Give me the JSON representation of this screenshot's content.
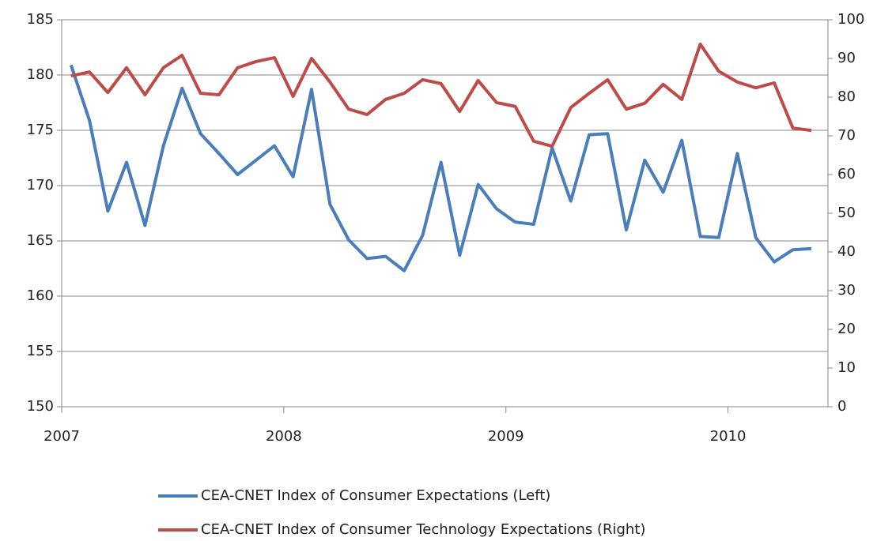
{
  "chart_data": {
    "type": "line",
    "x": [
      2007.042,
      2007.125,
      2007.208,
      2007.292,
      2007.375,
      2007.458,
      2007.542,
      2007.625,
      2007.708,
      2007.792,
      2007.875,
      2007.958,
      2008.042,
      2008.125,
      2008.208,
      2008.292,
      2008.375,
      2008.458,
      2008.542,
      2008.625,
      2008.708,
      2008.792,
      2008.875,
      2008.958,
      2009.042,
      2009.125,
      2009.208,
      2009.292,
      2009.375,
      2009.458,
      2009.542,
      2009.625,
      2009.708,
      2009.792,
      2009.875,
      2009.958,
      2010.042,
      2010.125,
      2010.208,
      2010.292,
      2010.375
    ],
    "xlim": [
      2007,
      2010.45
    ],
    "xticks": [
      2007,
      2008,
      2009,
      2010
    ],
    "ylim": [
      150,
      185
    ],
    "yticks": [
      150,
      155,
      160,
      165,
      170,
      175,
      180,
      185
    ],
    "y2lim": [
      0,
      100
    ],
    "y2ticks": [
      0,
      10,
      20,
      30,
      40,
      50,
      60,
      70,
      80,
      90,
      100
    ],
    "grid": true,
    "legend": "bottom",
    "series": [
      {
        "name": "CEA-CNET Index of Consumer Expectations (Left)",
        "color": "#4a7ebb",
        "values": [
          180.9,
          175.9,
          167.7,
          172.1,
          166.4,
          173.6,
          178.8,
          174.7,
          172.9,
          171.0,
          172.3,
          173.6,
          170.8,
          178.7,
          168.3,
          165.1,
          163.4,
          163.6,
          162.3,
          165.5,
          172.1,
          163.7,
          170.1,
          167.9,
          166.7,
          166.5,
          173.4,
          168.6,
          174.6,
          174.7,
          166.0,
          172.3,
          169.4,
          174.1,
          165.4,
          165.3,
          172.9,
          165.3,
          163.1,
          164.2,
          164.3
        ]
      },
      {
        "name": "CEA-CNET Index of Consumer Technology Expectations (Right)",
        "color": "#be4b48",
        "axis": "y2",
        "values": [
          85.5,
          86.5,
          81.2,
          87.6,
          80.6,
          87.6,
          90.8,
          81.0,
          80.6,
          87.6,
          89.2,
          90.2,
          80.2,
          90.0,
          83.9,
          76.9,
          75.5,
          79.4,
          81.0,
          84.5,
          83.5,
          76.3,
          84.3,
          78.6,
          77.6,
          68.6,
          67.3,
          77.3,
          81.0,
          84.5,
          76.9,
          78.4,
          83.3,
          79.4,
          93.7,
          86.7,
          83.9,
          82.4,
          83.7,
          72.0,
          71.4
        ]
      }
    ]
  }
}
